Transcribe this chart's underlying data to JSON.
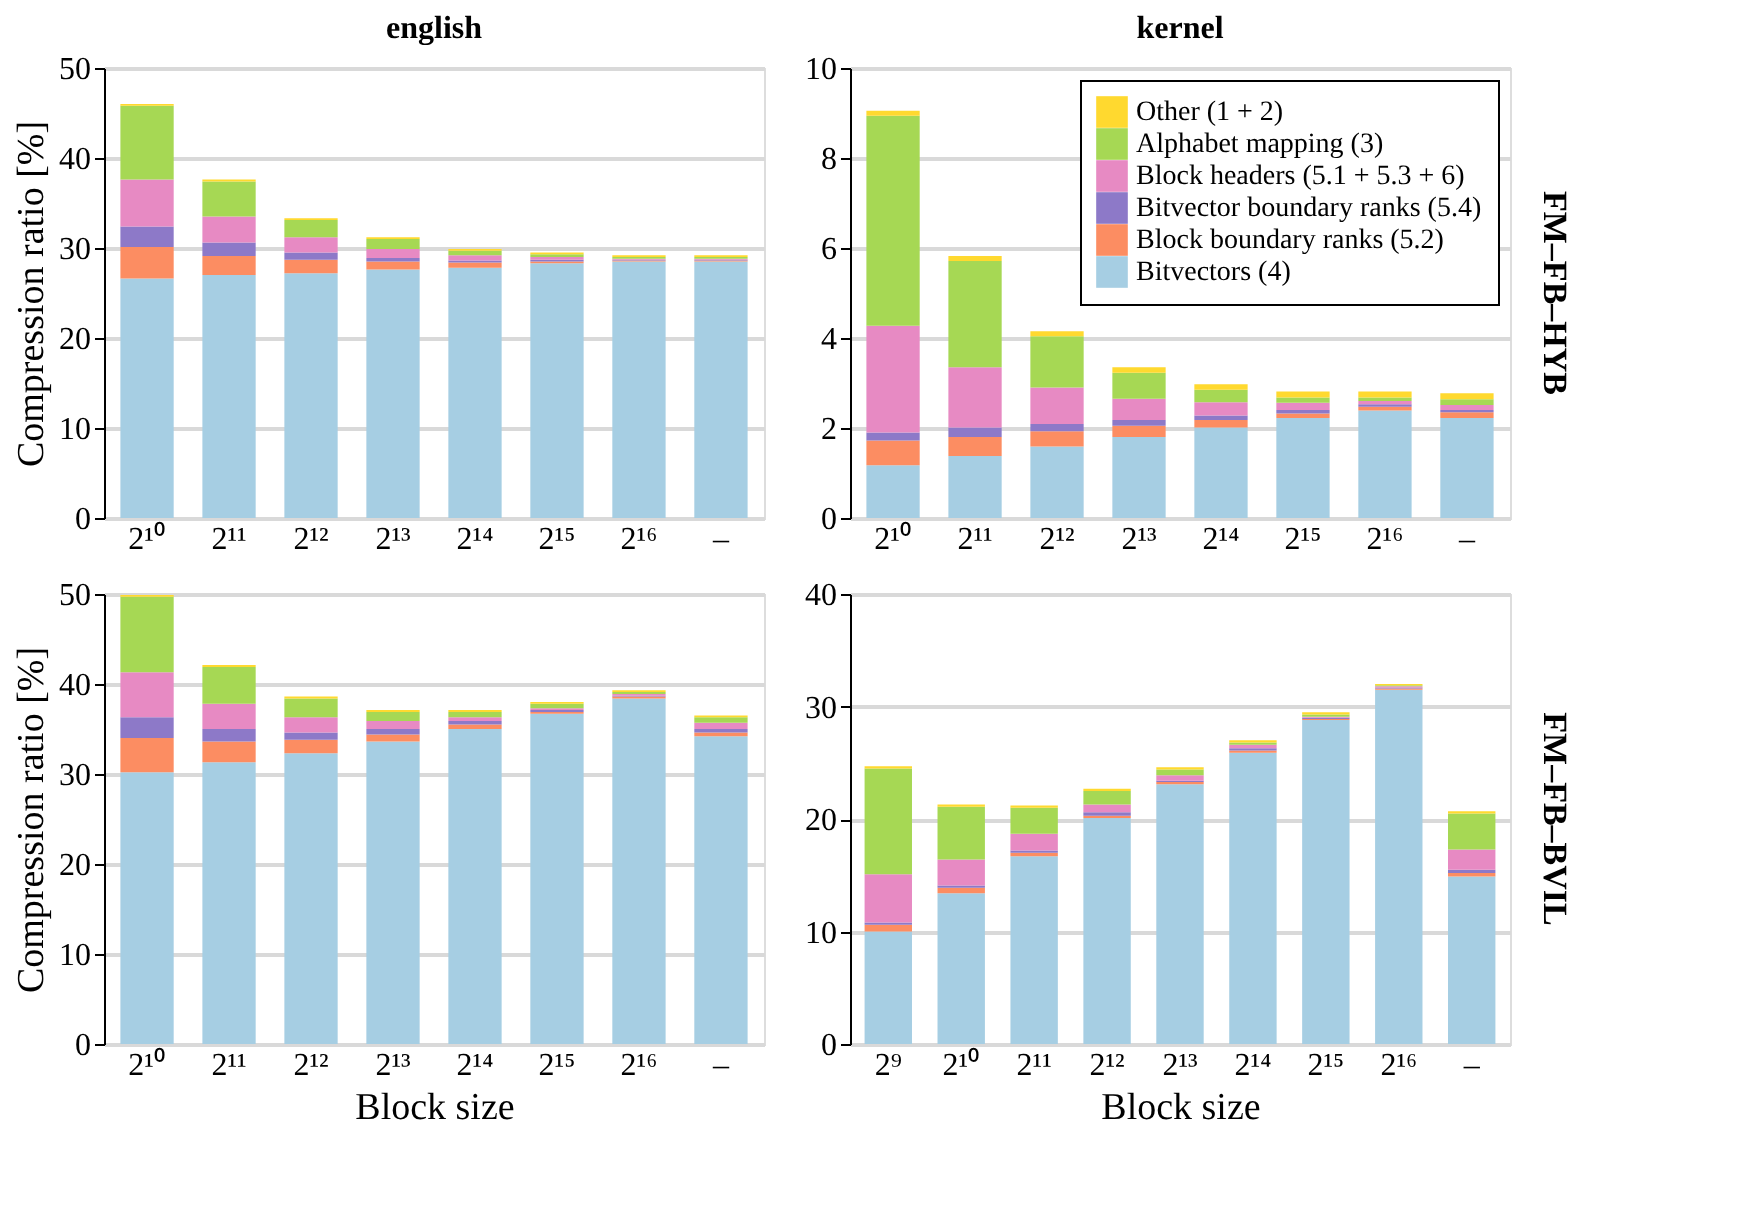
{
  "chart_data": [
    {
      "type": "bar",
      "stacked": true,
      "title": "english",
      "ylabel": "Compression ratio [%]",
      "categories": [
        "2¹⁰",
        "2¹¹",
        "2¹²",
        "2¹³",
        "2¹⁴",
        "2¹⁵",
        "2¹⁶",
        "–"
      ],
      "ylim": [
        0,
        50
      ],
      "yticks": [
        0,
        10,
        20,
        30,
        40,
        50
      ],
      "grid": "y",
      "series": [
        {
          "color": "#a6cee3",
          "values": [
            26.6,
            27.0,
            27.2,
            27.6,
            27.8,
            28.3,
            28.5,
            28.5
          ]
        },
        {
          "color": "#fc8d62",
          "values": [
            3.5,
            2.1,
            1.5,
            0.9,
            0.6,
            0.2,
            0.1,
            0.1
          ]
        },
        {
          "color": "#8d79c8",
          "values": [
            2.3,
            1.5,
            0.8,
            0.4,
            0.2,
            0.2,
            0.1,
            0.1
          ]
        },
        {
          "color": "#e78ac3",
          "values": [
            5.2,
            2.9,
            1.7,
            1.0,
            0.6,
            0.3,
            0.1,
            0.1
          ]
        },
        {
          "color": "#a6d854",
          "values": [
            8.2,
            3.9,
            1.9,
            1.1,
            0.5,
            0.3,
            0.2,
            0.2
          ]
        },
        {
          "color": "#ffd92f",
          "values": [
            0.2,
            0.2,
            0.2,
            0.2,
            0.2,
            0.2,
            0.2,
            0.2
          ]
        }
      ]
    },
    {
      "type": "bar",
      "stacked": true,
      "title": "kernel",
      "y2label": "FM–FB–HYB",
      "legend": "top right",
      "categories": [
        "2¹⁰",
        "2¹¹",
        "2¹²",
        "2¹³",
        "2¹⁴",
        "2¹⁵",
        "2¹⁶",
        "–"
      ],
      "ylim": [
        0,
        10
      ],
      "yticks": [
        0,
        2,
        4,
        6,
        8,
        10
      ],
      "grid": "y",
      "series": [
        {
          "name": "Bitvectors (4)",
          "color": "#a6cee3",
          "values": [
            1.17,
            1.38,
            1.59,
            1.8,
            2.01,
            2.22,
            2.39,
            2.22
          ]
        },
        {
          "name": "Block boundary ranks (5.2)",
          "color": "#fc8d62",
          "values": [
            0.55,
            0.42,
            0.34,
            0.25,
            0.17,
            0.1,
            0.08,
            0.13
          ]
        },
        {
          "name": "Bitvector boundary ranks (5.4)",
          "color": "#8d79c8",
          "values": [
            0.18,
            0.21,
            0.16,
            0.13,
            0.1,
            0.08,
            0.06,
            0.05
          ]
        },
        {
          "name": "Block headers (5.1 + 5.3 + 6)",
          "color": "#e78ac3",
          "values": [
            2.37,
            1.34,
            0.81,
            0.47,
            0.29,
            0.16,
            0.07,
            0.11
          ]
        },
        {
          "name": "Alphabet mapping (3)",
          "color": "#a6d854",
          "values": [
            4.67,
            2.36,
            1.14,
            0.58,
            0.28,
            0.12,
            0.08,
            0.13
          ]
        },
        {
          "name": "Other (1 + 2)",
          "color": "#ffd92f",
          "values": [
            0.11,
            0.11,
            0.11,
            0.12,
            0.12,
            0.13,
            0.13,
            0.13
          ]
        }
      ]
    },
    {
      "type": "bar",
      "stacked": true,
      "ylabel": "Compression ratio [%]",
      "xlabel": "Block size",
      "categories": [
        "2¹⁰",
        "2¹¹",
        "2¹²",
        "2¹³",
        "2¹⁴",
        "2¹⁵",
        "2¹⁶",
        "–"
      ],
      "ylim": [
        0,
        50
      ],
      "yticks": [
        0,
        10,
        20,
        30,
        40,
        50
      ],
      "grid": "y",
      "series": [
        {
          "color": "#a6cee3",
          "values": [
            30.2,
            31.3,
            32.3,
            33.6,
            35.0,
            36.7,
            38.4,
            34.2
          ]
        },
        {
          "color": "#fc8d62",
          "values": [
            3.8,
            2.3,
            1.5,
            0.8,
            0.5,
            0.2,
            0.2,
            0.4
          ]
        },
        {
          "color": "#8d79c8",
          "values": [
            2.3,
            1.4,
            0.8,
            0.6,
            0.4,
            0.2,
            0.1,
            0.4
          ]
        },
        {
          "color": "#e78ac3",
          "values": [
            5.0,
            2.8,
            1.7,
            0.9,
            0.4,
            0.2,
            0.2,
            0.7
          ]
        },
        {
          "color": "#a6d854",
          "values": [
            8.4,
            4.1,
            2.1,
            1.0,
            0.6,
            0.5,
            0.2,
            0.6
          ]
        },
        {
          "color": "#ffd92f",
          "values": [
            0.2,
            0.2,
            0.2,
            0.2,
            0.2,
            0.2,
            0.2,
            0.2
          ]
        }
      ]
    },
    {
      "type": "bar",
      "stacked": true,
      "xlabel": "Block size",
      "y2label": "FM–FB–BVIL",
      "categories": [
        "2⁹",
        "2¹⁰",
        "2¹¹",
        "2¹²",
        "2¹³",
        "2¹⁴",
        "2¹⁵",
        "2¹⁶",
        "–"
      ],
      "ylim": [
        0,
        40
      ],
      "yticks": [
        0,
        10,
        20,
        30,
        40
      ],
      "grid": "y",
      "series": [
        {
          "color": "#a6cee3",
          "values": [
            10.0,
            13.4,
            16.7,
            20.1,
            23.1,
            25.9,
            28.8,
            31.5,
            14.9
          ]
        },
        {
          "color": "#fc8d62",
          "values": [
            0.6,
            0.5,
            0.3,
            0.2,
            0.2,
            0.2,
            0.1,
            0.1,
            0.3
          ]
        },
        {
          "color": "#8d79c8",
          "values": [
            0.2,
            0.2,
            0.2,
            0.3,
            0.1,
            0.2,
            0.1,
            0.1,
            0.3
          ]
        },
        {
          "color": "#e78ac3",
          "values": [
            4.3,
            2.3,
            1.5,
            0.7,
            0.5,
            0.3,
            0.1,
            0.1,
            1.8
          ]
        },
        {
          "color": "#a6d854",
          "values": [
            9.4,
            4.7,
            2.3,
            1.2,
            0.5,
            0.2,
            0.2,
            0.1,
            3.2
          ]
        },
        {
          "color": "#ffd92f",
          "values": [
            0.2,
            0.2,
            0.2,
            0.2,
            0.2,
            0.2,
            0.2,
            0.1,
            0.2
          ]
        }
      ]
    }
  ]
}
